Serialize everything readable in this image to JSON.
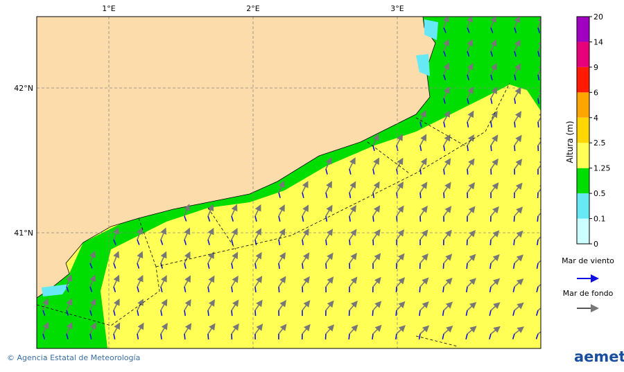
{
  "map": {
    "lon_labels": [
      "1°E",
      "2°E",
      "3°E"
    ],
    "lat_labels": [
      "42°N",
      "41°N"
    ]
  },
  "colorbar": {
    "title": "Altura (m)",
    "levels": [
      0,
      0.1,
      0.5,
      1.25,
      2.5,
      4,
      6,
      9,
      14,
      20
    ],
    "colors": [
      "#ccffff",
      "#66e8f5",
      "#00dd00",
      "#ffff55",
      "#ffd700",
      "#ffa500",
      "#ff1a00",
      "#e6007a",
      "#a000c0"
    ]
  },
  "legend": {
    "wind_sea": "Mar de viento",
    "swell": "Mar de fondo"
  },
  "footer": {
    "credit": "© Agencia Estatal de Meteorología",
    "logo": "aemet"
  }
}
